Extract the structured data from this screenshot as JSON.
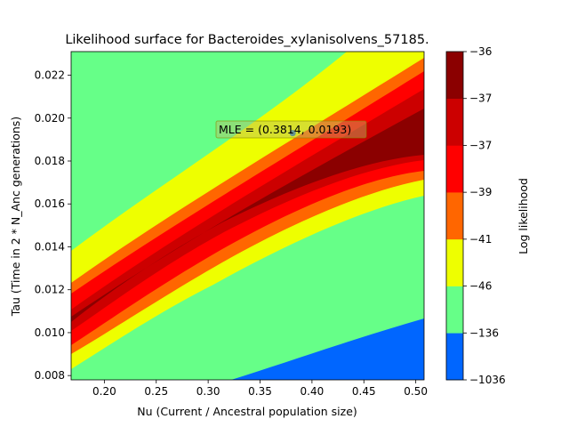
{
  "chart_data": {
    "type": "contour",
    "title": "Likelihood surface for Bacteroides_xylanisolvens_57185.",
    "xlabel": "Nu (Current / Ancestral population size)",
    "ylabel": "Tau (Time in 2 * N_Anc generations)",
    "xlim": [
      0.168,
      0.508
    ],
    "ylim": [
      0.0078,
      0.0231
    ],
    "x_ticks": [
      "0.20",
      "0.25",
      "0.30",
      "0.35",
      "0.40",
      "0.45",
      "0.50"
    ],
    "x_tick_values": [
      0.2,
      0.25,
      0.3,
      0.35,
      0.4,
      0.45,
      0.5
    ],
    "y_ticks": [
      "0.008",
      "0.010",
      "0.012",
      "0.014",
      "0.016",
      "0.018",
      "0.020",
      "0.022"
    ],
    "y_tick_values": [
      0.008,
      0.01,
      0.012,
      0.014,
      0.016,
      0.018,
      0.02,
      0.022
    ],
    "colorbar": {
      "label": "Log likelihood",
      "tick_labels": [
        "−1036",
        "−136",
        "−46",
        "−41",
        "−39",
        "−37",
        "−37",
        "−36"
      ],
      "level_colors": [
        "#0066ff",
        "#66ff88",
        "#eeff00",
        "#ff6600",
        "#ff0000",
        "#cc0000",
        "#8b0000"
      ]
    },
    "mle": {
      "nu": 0.3814,
      "tau": 0.0193,
      "label": "MLE = (0.3814, 0.0193)"
    }
  }
}
